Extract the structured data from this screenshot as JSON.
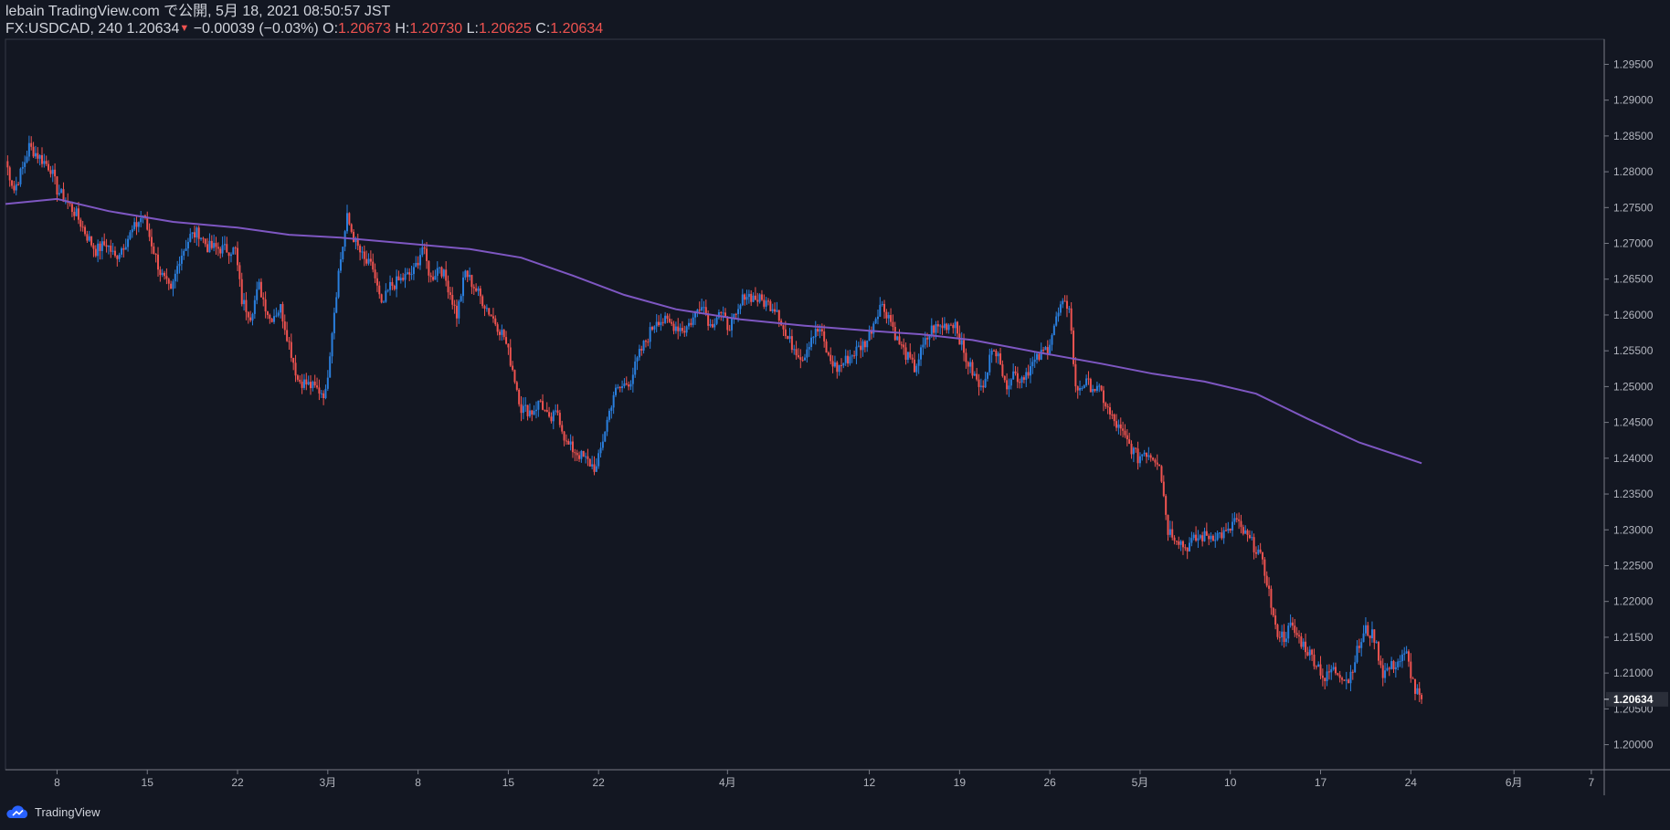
{
  "header": {
    "line1": "lebain TradingView.com で公開, 5月 18, 2021 08:50:57 JST",
    "symbol": "FX:USDCAD, 240",
    "last": "1.20634",
    "change": "−0.00039 (−0.03%)",
    "o_label": "O:",
    "o": "1.20673",
    "h_label": "H:",
    "h": "1.20730",
    "l_label": "L:",
    "l": "1.20625",
    "c_label": "C:",
    "c": "1.20634"
  },
  "footer": {
    "brand": "TradingView",
    "logo_icon": "tradingview-cloud-icon"
  },
  "colors": {
    "up": "#2a7fde",
    "down": "#ef5350",
    "ma": "#7e57c2",
    "bg": "#131722",
    "axis": "#787b86",
    "price_tag": "#2a2e39"
  },
  "chart_data": {
    "type": "candlestick",
    "title": "FX:USDCAD, 240",
    "ylim": [
      1.1965,
      1.2985
    ],
    "y_ticks": [
      1.295,
      1.29,
      1.285,
      1.28,
      1.275,
      1.27,
      1.265,
      1.26,
      1.255,
      1.25,
      1.245,
      1.24,
      1.235,
      1.23,
      1.225,
      1.22,
      1.215,
      1.21,
      1.205,
      1.2
    ],
    "y_tick_labels": [
      "1.29500",
      "1.29000",
      "1.28500",
      "1.28000",
      "1.27500",
      "1.27000",
      "1.26500",
      "1.26000",
      "1.25500",
      "1.25000",
      "1.24500",
      "1.24000",
      "1.23500",
      "1.23000",
      "1.22500",
      "1.22000",
      "1.21500",
      "1.21000",
      "1.20500",
      "1.20000"
    ],
    "x_range": [
      "2021-02-04",
      "2021-06-08"
    ],
    "x_ticks": [
      {
        "label": "8",
        "date": "2021-02-08"
      },
      {
        "label": "15",
        "date": "2021-02-15"
      },
      {
        "label": "22",
        "date": "2021-02-22"
      },
      {
        "label": "3月",
        "date": "2021-03-01"
      },
      {
        "label": "8",
        "date": "2021-03-08"
      },
      {
        "label": "15",
        "date": "2021-03-15"
      },
      {
        "label": "22",
        "date": "2021-03-22"
      },
      {
        "label": "4月",
        "date": "2021-04-01"
      },
      {
        "label": "12",
        "date": "2021-04-12"
      },
      {
        "label": "19",
        "date": "2021-04-19"
      },
      {
        "label": "26",
        "date": "2021-04-26"
      },
      {
        "label": "5月",
        "date": "2021-05-03"
      },
      {
        "label": "10",
        "date": "2021-05-10"
      },
      {
        "label": "17",
        "date": "2021-05-17"
      },
      {
        "label": "24",
        "date": "2021-05-24"
      },
      {
        "label": "6月",
        "date": "2021-06-01"
      },
      {
        "label": "7",
        "date": "2021-06-07"
      }
    ],
    "last_price": "1.20634",
    "close_path": [
      [
        "2021-02-04 00:00",
        1.2815
      ],
      [
        "2021-02-04 16:00",
        1.2775
      ],
      [
        "2021-02-05 08:00",
        1.2805
      ],
      [
        "2021-02-05 20:00",
        1.2835
      ],
      [
        "2021-02-07 12:00",
        1.2805
      ],
      [
        "2021-02-08 00:00",
        1.2775
      ],
      [
        "2021-02-08 16:00",
        1.276
      ],
      [
        "2021-02-09 12:00",
        1.274
      ],
      [
        "2021-02-10 08:00",
        1.271
      ],
      [
        "2021-02-11 00:00",
        1.269
      ],
      [
        "2021-02-11 20:00",
        1.27
      ],
      [
        "2021-02-12 12:00",
        1.268
      ],
      [
        "2021-02-14 16:00",
        1.274
      ],
      [
        "2021-02-15 08:00",
        1.27
      ],
      [
        "2021-02-16 00:00",
        1.266
      ],
      [
        "2021-02-16 20:00",
        1.263
      ],
      [
        "2021-02-17 12:00",
        1.268
      ],
      [
        "2021-02-18 08:00",
        1.271
      ],
      [
        "2021-02-19 00:00",
        1.2715
      ],
      [
        "2021-02-19 16:00",
        1.2695
      ],
      [
        "2021-02-21 20:00",
        1.269
      ],
      [
        "2021-02-22 08:00",
        1.262
      ],
      [
        "2021-02-23 00:00",
        1.26
      ],
      [
        "2021-02-23 16:00",
        1.264
      ],
      [
        "2021-02-24 12:00",
        1.2595
      ],
      [
        "2021-02-25 08:00",
        1.261
      ],
      [
        "2021-02-26 00:00",
        1.256
      ],
      [
        "2021-02-26 16:00",
        1.251
      ],
      [
        "2021-02-28 20:00",
        1.249
      ],
      [
        "2021-03-01 08:00",
        1.258
      ],
      [
        "2021-03-01 20:00",
        1.266
      ],
      [
        "2021-03-02 12:00",
        1.2735
      ],
      [
        "2021-03-03 04:00",
        1.27
      ],
      [
        "2021-03-03 20:00",
        1.2675
      ],
      [
        "2021-03-04 12:00",
        1.2665
      ],
      [
        "2021-03-05 04:00",
        1.261
      ],
      [
        "2021-03-05 20:00",
        1.264
      ],
      [
        "2021-03-07 16:00",
        1.266
      ],
      [
        "2021-03-08 08:00",
        1.2695
      ],
      [
        "2021-03-09 00:00",
        1.265
      ],
      [
        "2021-03-09 16:00",
        1.267
      ],
      [
        "2021-03-10 08:00",
        1.264
      ],
      [
        "2021-03-11 00:00",
        1.26
      ],
      [
        "2021-03-11 16:00",
        1.266
      ],
      [
        "2021-03-12 08:00",
        1.264
      ],
      [
        "2021-03-14 16:00",
        1.257
      ],
      [
        "2021-03-15 08:00",
        1.2525
      ],
      [
        "2021-03-16 00:00",
        1.247
      ],
      [
        "2021-03-16 20:00",
        1.2465
      ],
      [
        "2021-03-17 12:00",
        1.248
      ],
      [
        "2021-03-18 04:00",
        1.245
      ],
      [
        "2021-03-18 20:00",
        1.2465
      ],
      [
        "2021-03-19 12:00",
        1.242
      ],
      [
        "2021-03-21 20:00",
        1.2385
      ],
      [
        "2021-03-22 12:00",
        1.244
      ],
      [
        "2021-03-23 04:00",
        1.249
      ],
      [
        "2021-03-23 20:00",
        1.25
      ],
      [
        "2021-03-24 12:00",
        1.251
      ],
      [
        "2021-03-25 04:00",
        1.2545
      ],
      [
        "2021-03-25 20:00",
        1.257
      ],
      [
        "2021-03-26 12:00",
        1.2595
      ],
      [
        "2021-03-28 16:00",
        1.258
      ],
      [
        "2021-03-29 08:00",
        1.2595
      ],
      [
        "2021-03-30 00:00",
        1.262
      ],
      [
        "2021-03-30 16:00",
        1.2585
      ],
      [
        "2021-03-31 08:00",
        1.2605
      ],
      [
        "2021-04-01 00:00",
        1.2585
      ],
      [
        "2021-04-01 16:00",
        1.2595
      ],
      [
        "2021-04-02 08:00",
        1.263
      ],
      [
        "2021-04-04 20:00",
        1.261
      ],
      [
        "2021-04-05 12:00",
        1.257
      ],
      [
        "2021-04-06 04:00",
        1.2555
      ],
      [
        "2021-04-06 20:00",
        1.254
      ],
      [
        "2021-04-07 12:00",
        1.257
      ],
      [
        "2021-04-08 04:00",
        1.258
      ],
      [
        "2021-04-08 20:00",
        1.254
      ],
      [
        "2021-04-09 12:00",
        1.2525
      ],
      [
        "2021-04-11 20:00",
        1.2565
      ],
      [
        "2021-04-12 08:00",
        1.259
      ],
      [
        "2021-04-12 20:00",
        1.2615
      ],
      [
        "2021-04-13 12:00",
        1.26
      ],
      [
        "2021-04-14 04:00",
        1.2565
      ],
      [
        "2021-04-14 20:00",
        1.2545
      ],
      [
        "2021-04-15 12:00",
        1.2525
      ],
      [
        "2021-04-16 04:00",
        1.2555
      ],
      [
        "2021-04-16 20:00",
        1.258
      ],
      [
        "2021-04-18 16:00",
        1.259
      ],
      [
        "2021-04-19 08:00",
        1.2545
      ],
      [
        "2021-04-20 00:00",
        1.252
      ],
      [
        "2021-04-20 16:00",
        1.2495
      ],
      [
        "2021-04-21 08:00",
        1.254
      ],
      [
        "2021-04-22 00:00",
        1.2555
      ],
      [
        "2021-04-22 12:00",
        1.25
      ],
      [
        "2021-04-23 04:00",
        1.252
      ],
      [
        "2021-04-23 16:00",
        1.251
      ],
      [
        "2021-04-25 20:00",
        1.2555
      ],
      [
        "2021-04-26 08:00",
        1.2585
      ],
      [
        "2021-04-26 20:00",
        1.261
      ],
      [
        "2021-04-27 12:00",
        1.2615
      ],
      [
        "2021-04-28 00:00",
        1.2495
      ],
      [
        "2021-04-28 16:00",
        1.2505
      ],
      [
        "2021-04-29 08:00",
        1.25
      ],
      [
        "2021-04-30 00:00",
        1.249
      ],
      [
        "2021-04-30 16:00",
        1.246
      ],
      [
        "2021-05-02 20:00",
        1.24
      ],
      [
        "2021-05-03 08:00",
        1.241
      ],
      [
        "2021-05-03 20:00",
        1.2405
      ],
      [
        "2021-05-04 12:00",
        1.2395
      ],
      [
        "2021-05-05 04:00",
        1.23
      ],
      [
        "2021-05-05 20:00",
        1.229
      ],
      [
        "2021-05-06 12:00",
        1.2275
      ],
      [
        "2021-05-07 04:00",
        1.2285
      ],
      [
        "2021-05-07 16:00",
        1.229
      ],
      [
        "2021-05-09 20:00",
        1.2295
      ],
      [
        "2021-05-10 08:00",
        1.2315
      ],
      [
        "2021-05-10 20:00",
        1.23
      ],
      [
        "2021-05-11 12:00",
        1.2285
      ],
      [
        "2021-05-12 04:00",
        1.227
      ],
      [
        "2021-05-12 20:00",
        1.223
      ],
      [
        "2021-05-13 12:00",
        1.216
      ],
      [
        "2021-05-14 04:00",
        1.215
      ],
      [
        "2021-05-14 16:00",
        1.2165
      ],
      [
        "2021-05-16 20:00",
        1.211
      ],
      [
        "2021-05-17 08:00",
        1.209
      ],
      [
        "2021-05-17 20:00",
        1.2105
      ],
      [
        "2021-05-18 12:00",
        1.21
      ],
      [
        "2021-05-19 04:00",
        1.209
      ],
      [
        "2021-05-19 20:00",
        1.213
      ],
      [
        "2021-05-20 12:00",
        1.216
      ],
      [
        "2021-05-21 04:00",
        1.215
      ],
      [
        "2021-05-21 20:00",
        1.21
      ],
      [
        "2021-05-23 16:00",
        1.2125
      ],
      [
        "2021-05-24 08:00",
        1.2075
      ],
      [
        "2021-05-24 20:00",
        1.2063
      ]
    ],
    "ma_path": [
      [
        "2021-02-04 00:00",
        1.2755
      ],
      [
        "2021-02-08 00:00",
        1.2762
      ],
      [
        "2021-02-12 00:00",
        1.2745
      ],
      [
        "2021-02-17 00:00",
        1.273
      ],
      [
        "2021-02-22 00:00",
        1.2722
      ],
      [
        "2021-02-26 00:00",
        1.2712
      ],
      [
        "2021-03-02 00:00",
        1.2708
      ],
      [
        "2021-03-07 00:00",
        1.27
      ],
      [
        "2021-03-12 00:00",
        1.2692
      ],
      [
        "2021-03-16 00:00",
        1.268
      ],
      [
        "2021-03-20 00:00",
        1.2655
      ],
      [
        "2021-03-24 00:00",
        1.2628
      ],
      [
        "2021-03-28 00:00",
        1.2608
      ],
      [
        "2021-04-02 00:00",
        1.2594
      ],
      [
        "2021-04-07 00:00",
        1.2585
      ],
      [
        "2021-04-12 00:00",
        1.2578
      ],
      [
        "2021-04-16 00:00",
        1.2573
      ],
      [
        "2021-04-20 00:00",
        1.2565
      ],
      [
        "2021-04-25 00:00",
        1.2548
      ],
      [
        "2021-04-30 00:00",
        1.2532
      ],
      [
        "2021-05-04 00:00",
        1.2518
      ],
      [
        "2021-05-08 00:00",
        1.2507
      ],
      [
        "2021-05-12 00:00",
        1.249
      ],
      [
        "2021-05-16 00:00",
        1.2455
      ],
      [
        "2021-05-20 00:00",
        1.2422
      ],
      [
        "2021-05-24 20:00",
        1.2393
      ]
    ]
  }
}
